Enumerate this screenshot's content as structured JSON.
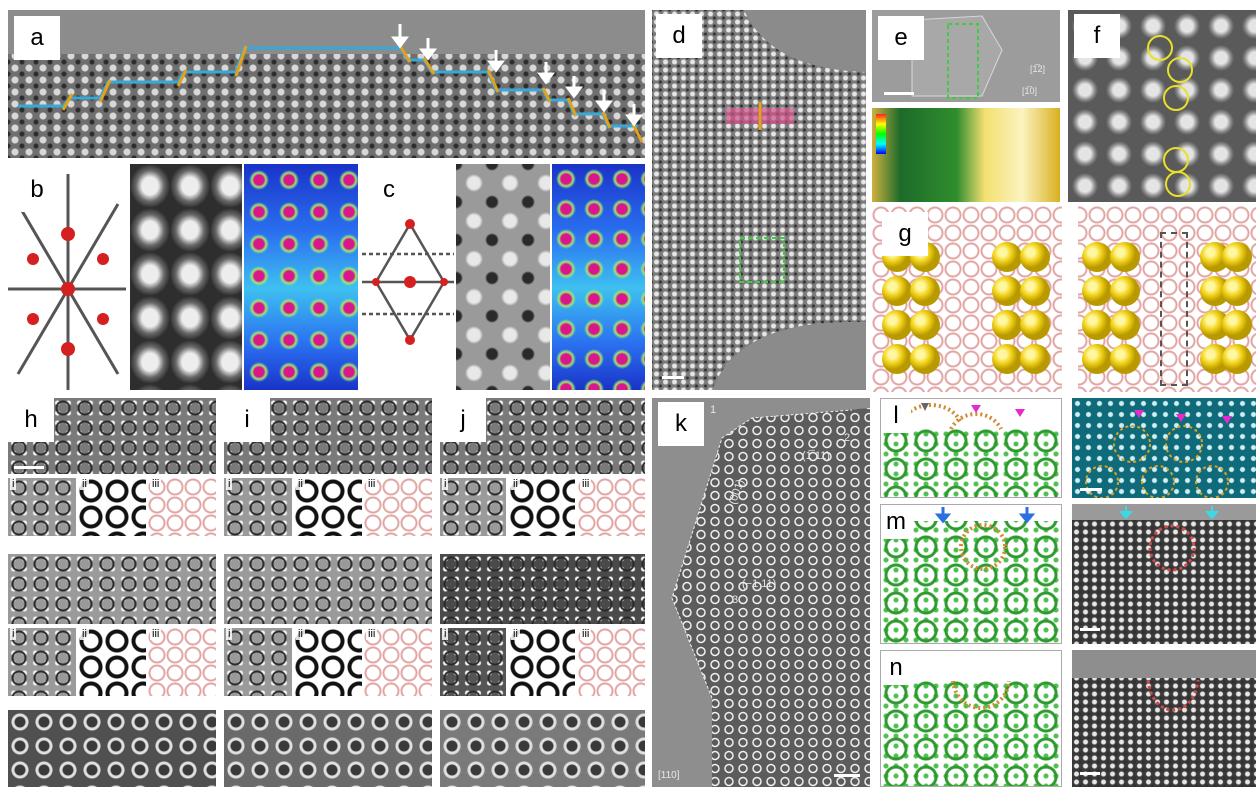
{
  "figure": {
    "panel_labels": [
      "a",
      "b",
      "c",
      "d",
      "e",
      "f",
      "g",
      "h",
      "i",
      "j",
      "k",
      "l",
      "m",
      "n"
    ],
    "sub_labels": [
      "i",
      "ii",
      "iii"
    ],
    "panel_e": {
      "direction_top": "[1̅2]",
      "direction_bottom": "[1̅0]"
    },
    "panel_k": {
      "zone_axis": "[110]",
      "facet_1": "(001)",
      "facet_2": "(1̅ 11)",
      "facet_3": "(−1 11)",
      "edge_numbers": [
        "1",
        "2",
        "3"
      ]
    },
    "colors": {
      "step_blue": "#3aa7d9",
      "step_orange": "#e3a21a",
      "arrow_white": "#ffffff",
      "circle_yellow": "#e8e02a",
      "model_green": "#2d9a2d",
      "magenta_marker": "#e62ad0",
      "blue_marker": "#2b6fe0"
    }
  }
}
